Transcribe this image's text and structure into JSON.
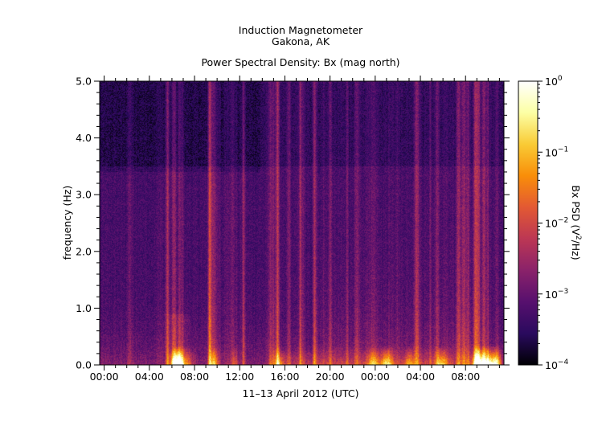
{
  "title_line1": "Induction Magnetometer",
  "title_line2": "Gakona, AK",
  "subtitle": "Power Spectral Density: Bx (mag north)",
  "chart_data": {
    "type": "heatmap",
    "xlabel": "11–13 April 2012 (UTC)",
    "ylabel": "frequency (Hz)",
    "x_ticks": [
      "00:00",
      "04:00",
      "08:00",
      "12:00",
      "16:00",
      "20:00",
      "00:00",
      "04:00",
      "08:00"
    ],
    "x_tick_hours": [
      0,
      4,
      8,
      12,
      16,
      20,
      24,
      28,
      32
    ],
    "x_range_hours": [
      -0.4,
      35.4
    ],
    "y_ticks": [
      "0.0",
      "1.0",
      "2.0",
      "3.0",
      "4.0",
      "5.0"
    ],
    "y_tick_values": [
      0,
      1,
      2,
      3,
      4,
      5
    ],
    "ylim": [
      0,
      5
    ],
    "colorbar": {
      "label": "Bx PSD (V²/Hz)",
      "label_base": "Bx PSD (V",
      "label_exp": "2",
      "label_tail": "/Hz)",
      "scale": "log",
      "range": [
        0.0001,
        1
      ],
      "ticks": [
        {
          "mant": "10",
          "exp": "0",
          "value": 1
        },
        {
          "mant": "10",
          "exp": "−1",
          "value": 0.1
        },
        {
          "mant": "10",
          "exp": "−2",
          "value": 0.01
        },
        {
          "mant": "10",
          "exp": "−3",
          "value": 0.001
        },
        {
          "mant": "10",
          "exp": "−4",
          "value": 0.0001
        }
      ],
      "colors": [
        "#000004",
        "#2a0a5e",
        "#57106e",
        "#8a226a",
        "#bc3754",
        "#e35933",
        "#f98e09",
        "#f9cb35",
        "#fcffa4",
        "#ffffff"
      ]
    }
  }
}
